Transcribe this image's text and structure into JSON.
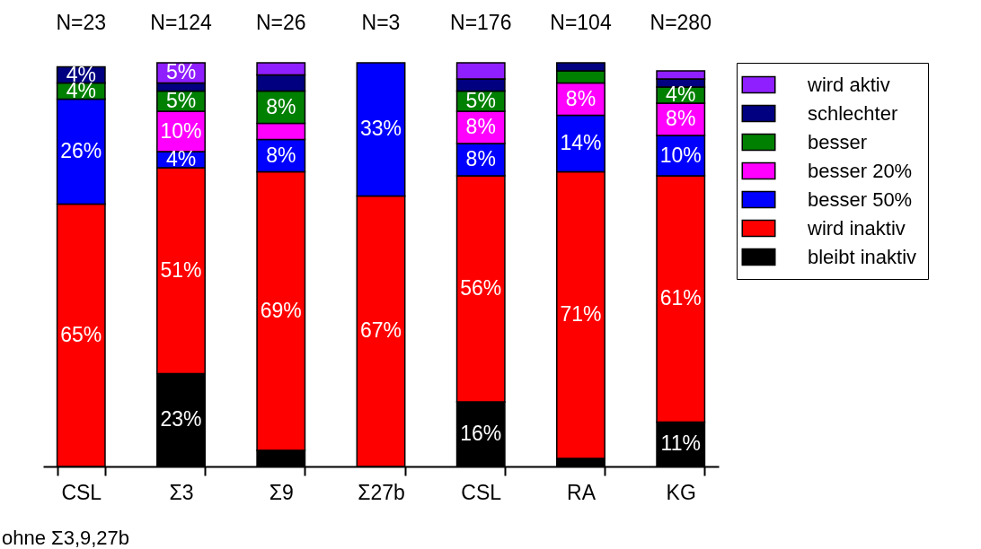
{
  "chart_data": {
    "type": "bar",
    "stacked": true,
    "categories": [
      "CSL",
      "Σ3",
      "Σ9",
      "Σ27b",
      "CSL",
      "RA",
      "KG"
    ],
    "series": [
      {
        "name": "bleibt inaktiv",
        "color": "#000000",
        "values": [
          0,
          23,
          4,
          0,
          16,
          2,
          11
        ],
        "value_labels": [
          null,
          "23%",
          null,
          null,
          "16%",
          null,
          "11%"
        ]
      },
      {
        "name": "wird inaktiv",
        "color": "#ff0000",
        "values": [
          65,
          51,
          69,
          67,
          56,
          71,
          61
        ],
        "value_labels": [
          "65%",
          "51%",
          "69%",
          "67%",
          "56%",
          "71%",
          "61%"
        ]
      },
      {
        "name": "besser 50%",
        "color": "#0000ff",
        "values": [
          26,
          4,
          8,
          33,
          8,
          14,
          10
        ],
        "value_labels": [
          "26%",
          "4%",
          "8%",
          "33%",
          "8%",
          "14%",
          "10%"
        ]
      },
      {
        "name": "besser 20%",
        "color": "#ff00ff",
        "values": [
          0,
          10,
          4,
          0,
          8,
          8,
          8
        ],
        "value_labels": [
          null,
          "10%",
          null,
          null,
          "8%",
          "8%",
          "8%"
        ]
      },
      {
        "name": "besser",
        "color": "#008000",
        "values": [
          4,
          5,
          8,
          0,
          5,
          3,
          4
        ],
        "value_labels": [
          "4%",
          "5%",
          "8%",
          null,
          "5%",
          null,
          "4%"
        ]
      },
      {
        "name": "schlechter",
        "color": "#000080",
        "values": [
          4,
          2,
          4,
          0,
          3,
          2,
          2
        ],
        "value_labels": [
          "4%",
          null,
          null,
          null,
          null,
          null,
          null
        ]
      },
      {
        "name": "wird aktiv",
        "color": "#8f1fff",
        "values": [
          0,
          5,
          3,
          0,
          4,
          0,
          2
        ],
        "value_labels": [
          null,
          "5%",
          null,
          null,
          null,
          null,
          null
        ]
      }
    ],
    "ylim": [
      0,
      100
    ],
    "tick_labels": "x",
    "grid": false,
    "legend": "right",
    "annotations": [
      "N=23",
      "N=124",
      "N=26",
      "N=3",
      "N=176",
      "N=104",
      "N=280",
      "ohne Σ3,9,27b"
    ]
  }
}
